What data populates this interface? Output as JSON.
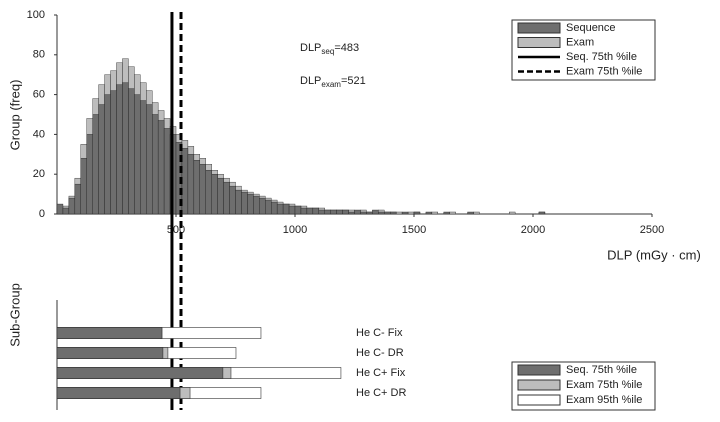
{
  "chart_data": [
    {
      "type": "histogram",
      "xlabel": "DLP (mGy · cm)",
      "ylabel": "Group (freq)",
      "xlim": [
        0,
        2500
      ],
      "xticks": [
        500,
        1000,
        1500,
        2000,
        2500
      ],
      "ylim": [
        0,
        100
      ],
      "yticks": [
        0,
        20,
        40,
        60,
        80,
        100
      ],
      "bins": [
        0,
        25,
        50,
        75,
        100,
        125,
        150,
        175,
        200,
        225,
        250,
        275,
        300,
        325,
        350,
        375,
        400,
        425,
        450,
        475,
        500,
        525,
        550,
        575,
        600,
        625,
        650,
        675,
        700,
        725,
        750,
        775,
        800,
        825,
        850,
        875,
        900,
        925,
        950,
        975,
        1000,
        1025,
        1050,
        1075,
        1100,
        1125,
        1150,
        1175,
        1200,
        1225,
        1250,
        1275,
        1300,
        1325,
        1350,
        1375,
        1400,
        1425,
        1450,
        1475,
        1500,
        1525,
        1550,
        1575,
        1600,
        1625,
        1650,
        1675,
        1700,
        1725,
        1750,
        1775,
        1800,
        1825,
        1850,
        1875,
        1900,
        1925,
        1950,
        1975,
        2000,
        2025,
        2050,
        2075,
        2100
      ],
      "series": [
        {
          "name": "Sequence",
          "color": "#6e6e6e",
          "values": [
            5,
            3,
            8,
            15,
            28,
            40,
            50,
            55,
            60,
            62,
            65,
            66,
            63,
            60,
            57,
            55,
            50,
            47,
            43,
            40,
            36,
            33,
            30,
            27,
            25,
            22,
            20,
            18,
            16,
            14,
            12,
            11,
            10,
            9,
            8,
            7,
            6,
            5,
            5,
            4,
            4,
            3,
            3,
            3,
            2,
            2,
            2,
            2,
            2,
            1,
            2,
            1,
            1,
            2,
            1,
            1,
            1,
            0,
            1,
            0,
            1,
            0,
            1,
            0,
            0,
            1,
            0,
            0,
            0,
            1,
            0,
            0,
            0,
            0,
            0,
            0,
            0,
            0,
            0,
            0,
            0,
            1,
            0,
            0
          ]
        },
        {
          "name": "Exam",
          "color": "#bdbdbd",
          "values": [
            3,
            4,
            9,
            18,
            35,
            48,
            58,
            65,
            70,
            72,
            76,
            78,
            74,
            70,
            66,
            62,
            56,
            52,
            48,
            44,
            40,
            37,
            34,
            30,
            28,
            25,
            22,
            20,
            18,
            16,
            14,
            12,
            11,
            10,
            9,
            8,
            7,
            6,
            5,
            5,
            4,
            4,
            3,
            3,
            3,
            2,
            2,
            2,
            2,
            2,
            1,
            2,
            1,
            1,
            2,
            1,
            1,
            1,
            0,
            1,
            1,
            0,
            0,
            1,
            0,
            0,
            1,
            0,
            0,
            0,
            1,
            0,
            0,
            0,
            0,
            0,
            1,
            0,
            0,
            0,
            0,
            1,
            0,
            0
          ]
        }
      ],
      "vlines": [
        {
          "name": "Seq. 75th %ile",
          "value": 483,
          "dash": false
        },
        {
          "name": "Exam 75th %ile",
          "value": 521,
          "dash": true
        }
      ],
      "annotations": [
        {
          "text": "DLP",
          "sub": "seq",
          "rest": "=483"
        },
        {
          "text": "DLP",
          "sub": "exam",
          "rest": "=521"
        }
      ]
    },
    {
      "type": "bar",
      "ylabel": "Sub-Group",
      "xlim": [
        0,
        2500
      ],
      "categories": [
        "He C- Fix",
        "He C- DR",
        "He C+ Fix",
        "He C+ DR"
      ],
      "series": [
        {
          "name": "Seq. 75th %ile",
          "color": "#6e6e6e",
          "values": [
            441,
            445,
            697,
            517
          ]
        },
        {
          "name": "Exam 75th %ile",
          "color": "#bdbdbd",
          "values": [
            441,
            466,
            731,
            559
          ]
        },
        {
          "name": "Exam 95th %ile",
          "color": "#ffffff",
          "values": [
            857,
            752,
            1193,
            857
          ]
        }
      ]
    }
  ]
}
